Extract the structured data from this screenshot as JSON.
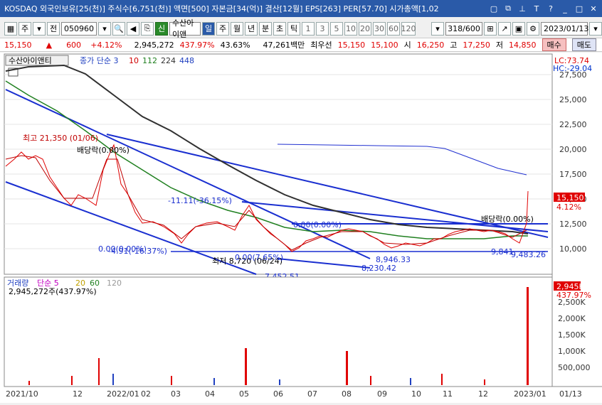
{
  "titlebar": {
    "title": "KOSDAQ 외국인보유[25(천)] 주식수[6,751(천)] 액면[500] 자본금[34(억)] 결산[12월] EPS[263] PER[57.70] 시가총액[1,02",
    "ctrl_icons": [
      "window-icon",
      "restore-icon",
      "pin-icon",
      "font-icon",
      "help-icon",
      "minimize-icon",
      "maximize-icon",
      "close-icon"
    ]
  },
  "toolbar": {
    "mode": "주",
    "prev": "전",
    "code": "050960",
    "new_badge": "신",
    "stock_name": "수산아이앤",
    "periods": [
      "일",
      "주",
      "월",
      "년",
      "분",
      "초",
      "틱"
    ],
    "intervals": [
      "1",
      "3",
      "5",
      "10",
      "20",
      "30",
      "60",
      "120"
    ],
    "count": "318/600",
    "date": "2023/01/13"
  },
  "quote": {
    "price": "15,150",
    "change": "600",
    "change_pct": "+4.12%",
    "volume": "2,945,272",
    "vol_ratio": "437.97%",
    "turnover": "43.63%",
    "amount": "47,261백만",
    "best_bid_label": "최우선",
    "best_ask": "15,150",
    "best_bid": "15,100",
    "open_label": "시",
    "open": "16,250",
    "high_label": "고",
    "high": "17,250",
    "low_label": "저",
    "low": "14,850",
    "buy_label": "매수",
    "sell_label": "매도"
  },
  "chart": {
    "price_panel": {
      "name_box": "수산아이앤티",
      "ma_legend": [
        "종가 단순 3",
        "10",
        "112",
        "224",
        "448"
      ],
      "lc": "LC:73.74",
      "hc": "HC:-29.04",
      "y_ticks": [
        "27,500",
        "25,000",
        "22,500",
        "20,000",
        "17,500",
        "15,000",
        "12,500",
        "10,000"
      ],
      "current_price_tag": "15,150",
      "current_pct_tag": "4.12%",
      "annotations": [
        "최고 21,350 (01/06)",
        "배당락(0.00%)",
        "-11.11(-36.15%)",
        "0.00(0.00%)",
        "0.00(0.00%)",
        "-4.91(-16.37%)",
        "최저 8,720 (06/24)",
        "0.00(7.65%)",
        "8,946.33",
        "8,230.42",
        "배당락(0.00%)",
        "9,841",
        "9,483.26",
        "7,452.51"
      ]
    },
    "volume_panel": {
      "legend": [
        "거래량",
        "단순 5",
        "20",
        "60",
        "120"
      ],
      "volume_text": "2,945,272주(437.97%)",
      "volume_tag": "2,945K",
      "pct_tag": "437.97%",
      "y_ticks": [
        "2,500K",
        "2,000K",
        "1,500K",
        "1,000K",
        "500,000"
      ]
    },
    "x_ticks": [
      "2021/10",
      "12",
      "2022/01",
      "02",
      "03",
      "04",
      "05",
      "06",
      "07",
      "08",
      "09",
      "10",
      "11",
      "12",
      "2023/01",
      "01/13"
    ]
  },
  "chart_data": [
    {
      "type": "line",
      "title": "수산아이앤티",
      "x": [
        "2021/10",
        "12",
        "2022/01",
        "02",
        "03",
        "04",
        "05",
        "06",
        "07",
        "08",
        "09",
        "10",
        "11",
        "12",
        "2023/01"
      ],
      "series": [
        {
          "name": "종가 단순 3",
          "values": [
            18000,
            17000,
            19500,
            14000,
            12000,
            13000,
            13500,
            10000,
            10500,
            11800,
            10500,
            10300,
            11800,
            11700,
            15150
          ]
        },
        {
          "name": "224",
          "values": [
            27500,
            26700,
            24500,
            22500,
            20500,
            18500,
            17000,
            15500,
            14500,
            13500,
            12800,
            12300,
            12000,
            11700,
            11600
          ]
        },
        {
          "name": "448",
          "values": [
            20500,
            20500,
            20400,
            20300,
            20200,
            20000,
            19800,
            19500,
            19000,
            18500,
            18000,
            17800,
            17700,
            17600,
            17500
          ]
        }
      ],
      "ylim": [
        7500,
        28500
      ],
      "grid": true,
      "annotations": [
        "최고 21,350 (01/06)",
        "최저 8,720 (06/24)"
      ]
    },
    {
      "type": "bar",
      "title": "거래량",
      "categories": [
        "2021/10",
        "12",
        "2022/01",
        "02",
        "03",
        "04",
        "05",
        "06",
        "07",
        "08",
        "09",
        "10",
        "11",
        "12",
        "2023/01"
      ],
      "values": [
        80000,
        250000,
        800000,
        150000,
        120000,
        200000,
        1100000,
        90000,
        100000,
        1050000,
        300000,
        150000,
        200000,
        100000,
        2945272
      ],
      "ylim": [
        0,
        3000000
      ]
    }
  ]
}
